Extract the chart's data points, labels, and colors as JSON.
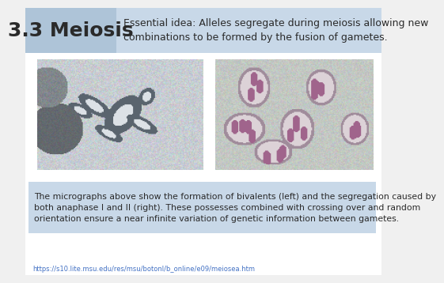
{
  "title": "3.3 Meiosis",
  "essential_idea": "Essential idea: Alleles segregate during meiosis allowing new\ncombinations to be formed by the fusion of gametes.",
  "caption": "The micrographs above show the formation of bivalents (left) and the segregation caused by\nboth anaphase I and II (right). These possesses combined with crossing over and random\norientation ensure a near infinite variation of genetic information between gametes.",
  "url": "https://s10.lite.msu.edu/res/msu/botonl/b_online/e09/meiosea.htm",
  "header_bg": "#c8d8e8",
  "title_bg": "#aec4d8",
  "caption_bg": "#c8d8e8",
  "bg_color": "#f0f0f0",
  "title_fontsize": 18,
  "idea_fontsize": 9.0,
  "caption_fontsize": 7.8,
  "url_fontsize": 6.0
}
